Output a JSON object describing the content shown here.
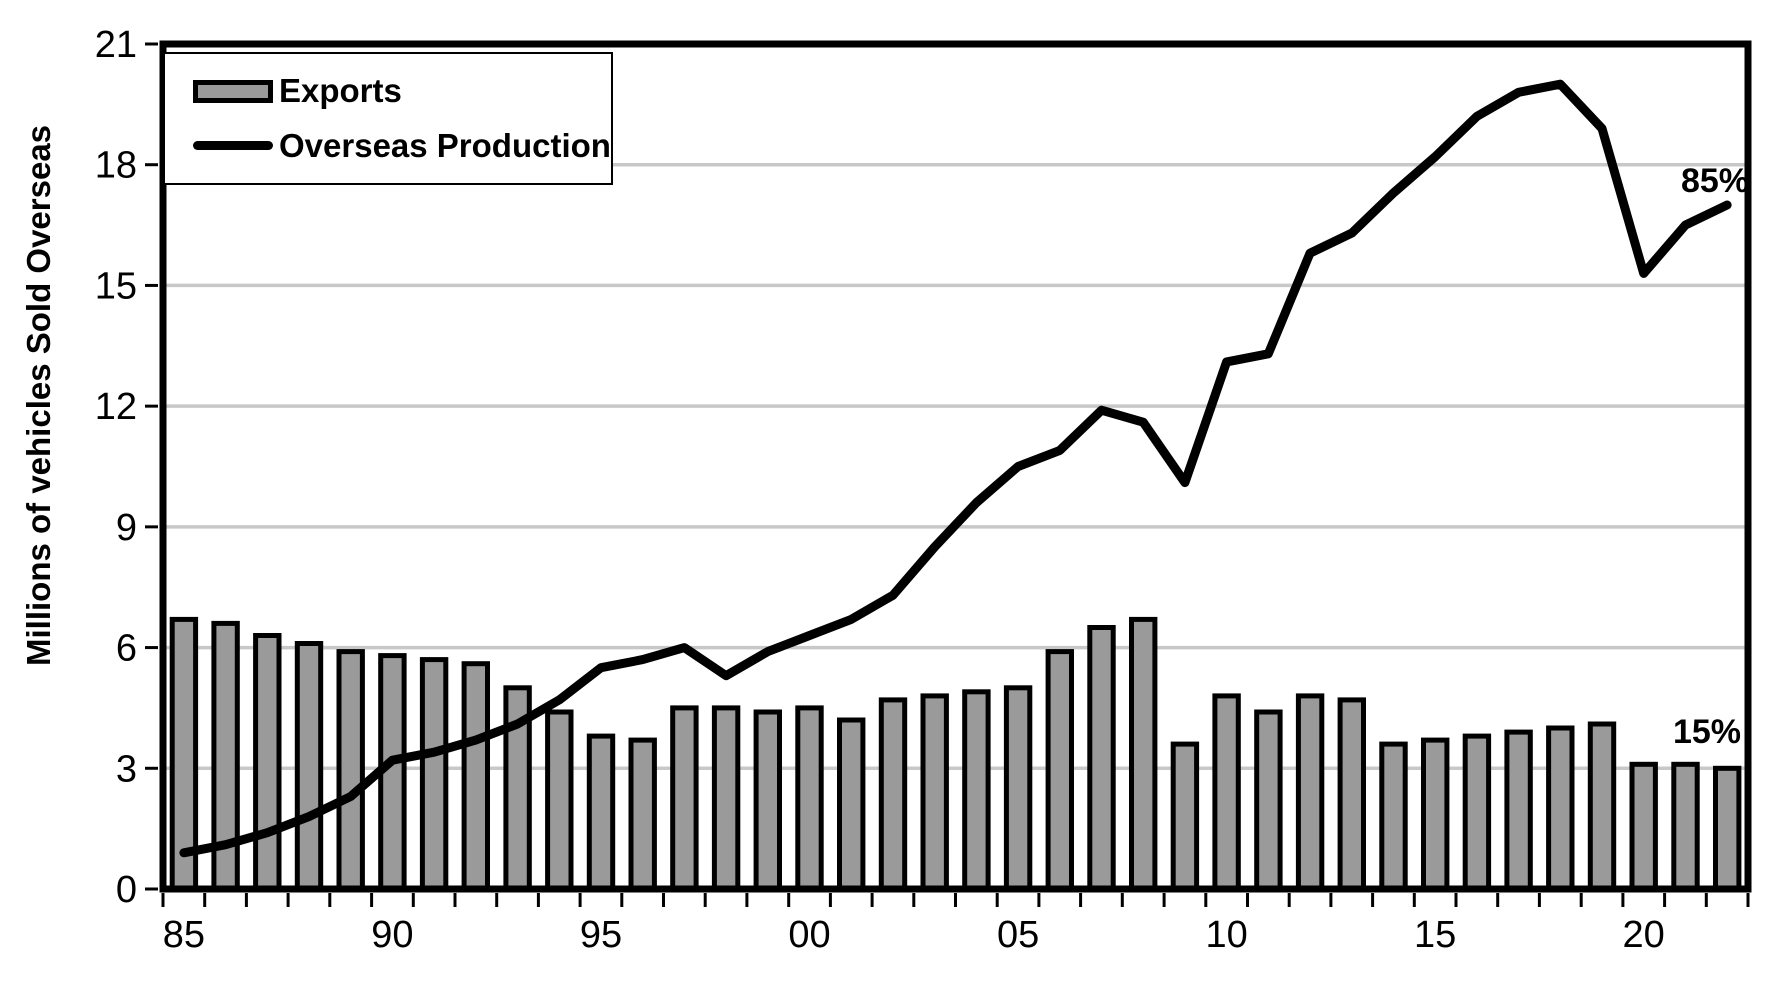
{
  "page": {
    "background": "#ffffff"
  },
  "colors": {
    "bar_fill": "#9a9a9a",
    "bar_border": "#000000",
    "line": "#000000",
    "gridline": "#c8c8c8",
    "axis": "#000000",
    "background": "#ffffff"
  },
  "chart_data": {
    "type": "combo",
    "title": "",
    "xlabel": "",
    "ylabel": "Millions of vehicles Sold Overseas",
    "ylim": [
      0,
      21
    ],
    "yticks": [
      0,
      3,
      6,
      9,
      12,
      15,
      18,
      21
    ],
    "grid": "horizontal",
    "legend_position": "top-left",
    "categories": [
      1985,
      1986,
      1987,
      1988,
      1989,
      1990,
      1991,
      1992,
      1993,
      1994,
      1995,
      1996,
      1997,
      1998,
      1999,
      2000,
      2001,
      2002,
      2003,
      2004,
      2005,
      2006,
      2007,
      2008,
      2009,
      2010,
      2011,
      2012,
      2013,
      2014,
      2015,
      2016,
      2017,
      2018,
      2019,
      2020,
      2021,
      2022
    ],
    "x_ticks": [
      {
        "year": 1985,
        "label": "85"
      },
      {
        "year": 1990,
        "label": "90"
      },
      {
        "year": 1995,
        "label": "95"
      },
      {
        "year": 2000,
        "label": "00"
      },
      {
        "year": 2005,
        "label": "05"
      },
      {
        "year": 2010,
        "label": "10"
      },
      {
        "year": 2015,
        "label": "15"
      },
      {
        "year": 2020,
        "label": "20"
      }
    ],
    "series": [
      {
        "name": "Exports",
        "type": "bar",
        "color": "#9a9a9a",
        "border_color": "#000000",
        "values": [
          6.7,
          6.6,
          6.3,
          6.1,
          5.9,
          5.8,
          5.7,
          5.6,
          5.0,
          4.4,
          3.8,
          3.7,
          4.5,
          4.5,
          4.4,
          4.5,
          4.2,
          4.7,
          4.8,
          4.9,
          5.0,
          5.9,
          6.5,
          6.7,
          3.6,
          4.8,
          4.4,
          4.8,
          4.7,
          3.6,
          3.7,
          3.8,
          3.9,
          4.0,
          4.1,
          3.1,
          3.1,
          3.0
        ]
      },
      {
        "name": "Overseas Production",
        "type": "line",
        "color": "#000000",
        "values": [
          0.9,
          1.1,
          1.4,
          1.8,
          2.3,
          3.2,
          3.4,
          3.7,
          4.1,
          4.7,
          5.5,
          5.7,
          6.0,
          5.3,
          5.9,
          6.3,
          6.7,
          7.3,
          8.5,
          9.6,
          10.5,
          10.9,
          11.9,
          11.6,
          10.1,
          13.1,
          13.3,
          15.8,
          16.3,
          17.3,
          18.2,
          19.2,
          19.8,
          20.0,
          18.9,
          15.3,
          16.5,
          17.0
        ]
      }
    ],
    "annotations": [
      {
        "text": "85%",
        "location": "line-end"
      },
      {
        "text": "15%",
        "location": "bars-end"
      }
    ]
  }
}
